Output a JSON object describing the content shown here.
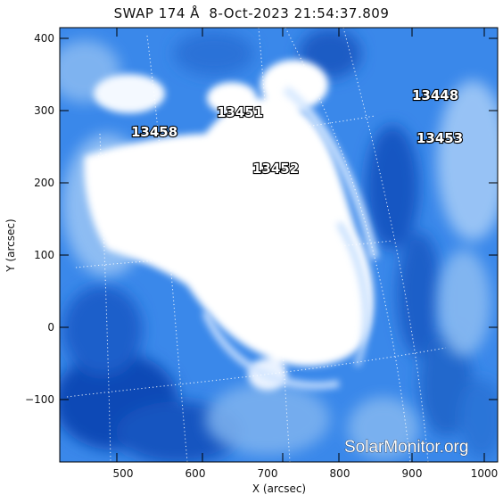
{
  "title": "SWAP 174 Å  8-Oct-2023 21:54:37.809",
  "x_axis": {
    "label": "X (arcsec)",
    "ticks": [
      "500",
      "600",
      "700",
      "800",
      "900",
      "1000"
    ]
  },
  "y_axis": {
    "label": "Y (arcsec)",
    "ticks": [
      "400",
      "300",
      "200",
      "100",
      "0",
      "−100"
    ]
  },
  "active_regions": [
    "13451",
    "13458",
    "13452",
    "13448",
    "13453"
  ],
  "watermark": "SolarMonitor.org",
  "colors": {
    "map_base": "#2f80e8",
    "map_dark": "#0b4ab5",
    "saturated": "#ffffff",
    "grid": "#ffffff"
  }
}
